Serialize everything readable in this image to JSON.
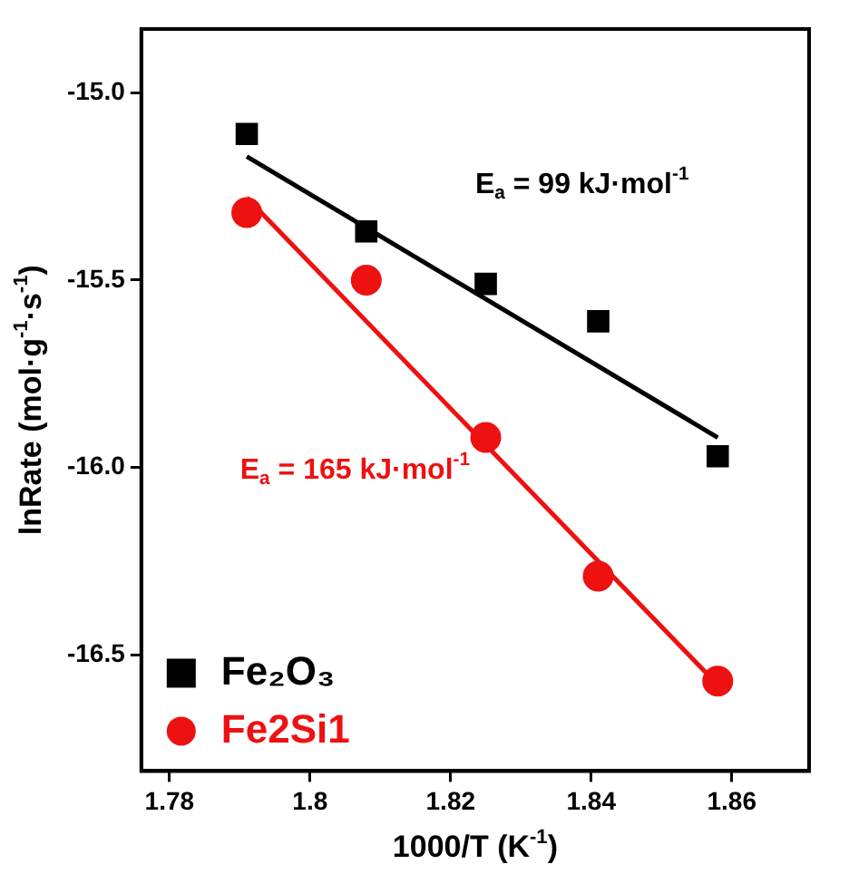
{
  "chart_data": {
    "type": "scatter",
    "xlabel": "1000/T (K$^{-1}$)",
    "ylabel": "lnRate (mol·g$^{-1}$·s$^{-1}$)",
    "xlim": [
      1.776,
      1.871
    ],
    "xticks": [
      1.78,
      1.8,
      1.82,
      1.84,
      1.86
    ],
    "ylim": [
      -16.81,
      -14.83
    ],
    "yticks": [
      {
        "value": -15,
        "label": "-15.0"
      },
      {
        "value": -15.5,
        "label": "-15.5"
      },
      {
        "value": -16,
        "label": "-16.0"
      },
      {
        "value": -16.5,
        "label": "-16.5"
      }
    ],
    "grid": false,
    "legend": "bottom left",
    "series": [
      {
        "type": "line",
        "color": "#000000",
        "x": [
          1.791,
          1.858
        ],
        "values": [
          -15.17,
          -15.92
        ],
        "marker": "none"
      },
      {
        "type": "line",
        "color": "#ee1111",
        "x": [
          1.791,
          1.858
        ],
        "values": [
          -15.28,
          -16.58
        ],
        "marker": "none"
      },
      {
        "name": "Fe₂O₃",
        "color": "#000000",
        "marker": "square",
        "x": [
          1.791,
          1.808,
          1.825,
          1.841,
          1.858
        ],
        "values": [
          -15.11,
          -15.37,
          -15.51,
          -15.61,
          -15.97
        ]
      },
      {
        "name": "Fe2Si1",
        "color": "#ee1111",
        "marker": "circle",
        "x": [
          1.791,
          1.808,
          1.825,
          1.841,
          1.858
        ],
        "values": [
          -15.32,
          -15.5,
          -15.92,
          -16.29,
          -16.57
        ]
      }
    ],
    "annotations": [
      "E$_{a}$ = 99 kJ·mol$^{-1}$",
      "E$_{a}$ = 165 kJ·mol$^{-1}$"
    ]
  }
}
